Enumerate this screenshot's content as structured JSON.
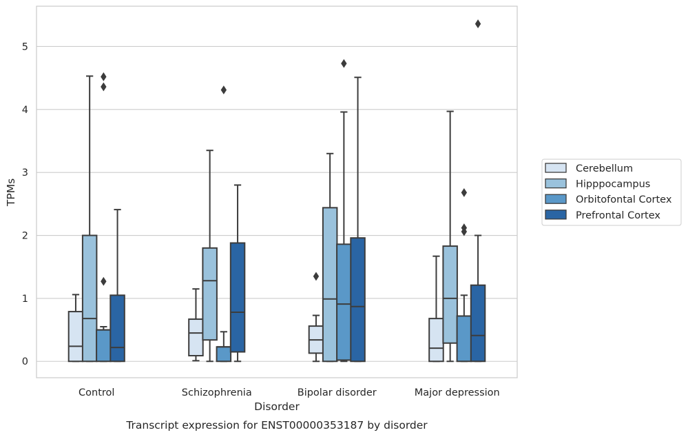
{
  "caption": "Transcript expression for ENST00000353187 by disorder",
  "chart_data": {
    "type": "boxplot",
    "xlabel": "Disorder",
    "ylabel": "TPMs",
    "ylim": [
      -0.26,
      5.64
    ],
    "yticks": [
      0,
      1,
      2,
      3,
      4,
      5
    ],
    "grid": "horizontal",
    "legend_position": "right",
    "categories": [
      "Control",
      "Schizophrenia",
      "Bipolar disorder",
      "Major depression"
    ],
    "series": [
      {
        "name": "Cerebellum",
        "color": "#d6e4f2",
        "boxes": [
          {
            "whislo": 0.0,
            "q1": 0.0,
            "med": 0.24,
            "q3": 0.79,
            "whishi": 1.06,
            "fliers": []
          },
          {
            "whislo": 0.01,
            "q1": 0.09,
            "med": 0.45,
            "q3": 0.67,
            "whishi": 1.15,
            "fliers": []
          },
          {
            "whislo": 0.0,
            "q1": 0.13,
            "med": 0.34,
            "q3": 0.56,
            "whishi": 0.73,
            "fliers": [
              1.35
            ]
          },
          {
            "whislo": 0.0,
            "q1": 0.0,
            "med": 0.21,
            "q3": 0.68,
            "whishi": 1.67,
            "fliers": []
          }
        ]
      },
      {
        "name": "Hipppocampus",
        "color": "#9ac2dc",
        "boxes": [
          {
            "whislo": 0.0,
            "q1": 0.0,
            "med": 0.68,
            "q3": 2.0,
            "whishi": 4.53,
            "fliers": []
          },
          {
            "whislo": 0.0,
            "q1": 0.34,
            "med": 1.28,
            "q3": 1.8,
            "whishi": 3.35,
            "fliers": []
          },
          {
            "whislo": 0.0,
            "q1": 0.0,
            "med": 0.99,
            "q3": 2.44,
            "whishi": 3.3,
            "fliers": []
          },
          {
            "whislo": 0.0,
            "q1": 0.29,
            "med": 1.0,
            "q3": 1.83,
            "whishi": 3.97,
            "fliers": []
          }
        ]
      },
      {
        "name": "Orbitofontal Cortex",
        "color": "#5a98c8",
        "boxes": [
          {
            "whislo": 0.0,
            "q1": 0.0,
            "med": 0.5,
            "q3": 0.5,
            "whishi": 0.55,
            "fliers": [
              1.27,
              4.36,
              4.52
            ]
          },
          {
            "whislo": 0.0,
            "q1": 0.0,
            "med": 0.23,
            "q3": 0.23,
            "whishi": 0.47,
            "fliers": [
              4.31
            ]
          },
          {
            "whislo": 0.0,
            "q1": 0.02,
            "med": 0.91,
            "q3": 1.86,
            "whishi": 3.96,
            "fliers": [
              4.73
            ]
          },
          {
            "whislo": 0.0,
            "q1": 0.0,
            "med": 0.72,
            "q3": 0.72,
            "whishi": 1.05,
            "fliers": [
              2.06,
              2.12,
              2.68
            ]
          }
        ]
      },
      {
        "name": "Prefrontal Cortex",
        "color": "#2a65a4",
        "boxes": [
          {
            "whislo": 0.0,
            "q1": 0.0,
            "med": 0.22,
            "q3": 1.05,
            "whishi": 2.41,
            "fliers": []
          },
          {
            "whislo": 0.0,
            "q1": 0.15,
            "med": 0.78,
            "q3": 1.88,
            "whishi": 2.8,
            "fliers": []
          },
          {
            "whislo": 0.0,
            "q1": 0.0,
            "med": 0.87,
            "q3": 1.96,
            "whishi": 4.51,
            "fliers": []
          },
          {
            "whislo": 0.0,
            "q1": 0.0,
            "med": 0.41,
            "q3": 1.21,
            "whishi": 2.0,
            "fliers": [
              5.36
            ]
          }
        ]
      }
    ]
  }
}
